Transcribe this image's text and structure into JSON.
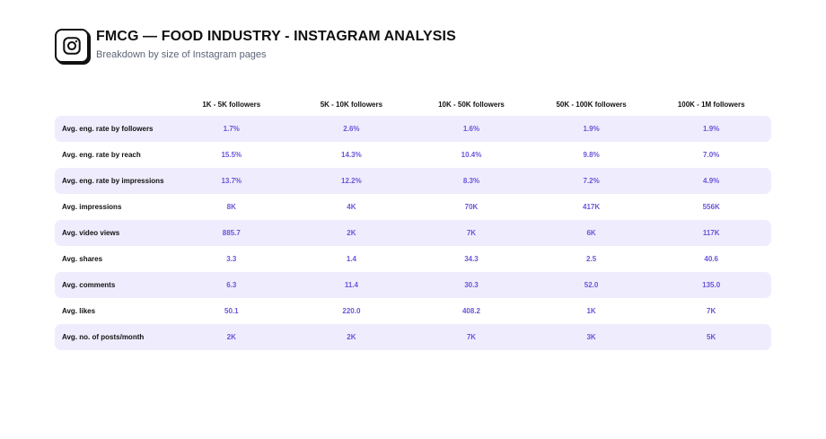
{
  "header": {
    "title": "FMCG — FOOD INDUSTRY - INSTAGRAM ANALYSIS",
    "subtitle": "Breakdown by size of Instagram pages",
    "logo_icon": "instagram-icon"
  },
  "colors": {
    "accent": "#6a55d8",
    "row_shade": "#efedfd",
    "text": "#111111",
    "muted": "#5b6478"
  },
  "chart_data": {
    "type": "table",
    "columns": [
      "1K - 5K followers",
      "5K - 10K followers",
      "10K - 50K followers",
      "50K - 100K followers",
      "100K - 1M followers"
    ],
    "rows": [
      {
        "label": "Avg. eng. rate by followers",
        "values": [
          "1.7%",
          "2.6%",
          "1.6%",
          "1.9%",
          "1.9%"
        ]
      },
      {
        "label": "Avg. eng. rate by reach",
        "values": [
          "15.5%",
          "14.3%",
          "10.4%",
          "9.8%",
          "7.0%"
        ]
      },
      {
        "label": "Avg. eng. rate by impressions",
        "values": [
          "13.7%",
          "12.2%",
          "8.3%",
          "7.2%",
          "4.9%"
        ]
      },
      {
        "label": "Avg. impressions",
        "values": [
          "8K",
          "4K",
          "70K",
          "417K",
          "556K"
        ]
      },
      {
        "label": "Avg. video views",
        "values": [
          "885.7",
          "2K",
          "7K",
          "6K",
          "117K"
        ]
      },
      {
        "label": "Avg. shares",
        "values": [
          "3.3",
          "1.4",
          "34.3",
          "2.5",
          "40.6"
        ]
      },
      {
        "label": "Avg. comments",
        "values": [
          "6.3",
          "11.4",
          "30.3",
          "52.0",
          "135.0"
        ]
      },
      {
        "label": "Avg. likes",
        "values": [
          "50.1",
          "220.0",
          "408.2",
          "1K",
          "7K"
        ]
      },
      {
        "label": "Avg. no. of posts/month",
        "values": [
          "2K",
          "2K",
          "7K",
          "3K",
          "5K"
        ]
      }
    ]
  }
}
